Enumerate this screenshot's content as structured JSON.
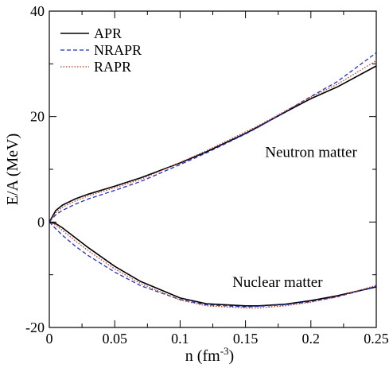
{
  "chart_data": {
    "type": "line",
    "title": "",
    "xlabel": "n (fm",
    "xlabel_sup": "-3",
    "xlabel_close": ")",
    "ylabel": "E/A (MeV)",
    "xlim": [
      0,
      0.25
    ],
    "ylim": [
      -20,
      40
    ],
    "x_ticks": [
      0,
      0.05,
      0.1,
      0.15,
      0.2,
      0.25
    ],
    "x_tick_labels": [
      "0",
      "0.05",
      "0.1",
      "0.15",
      "0.2",
      "0.25"
    ],
    "y_ticks": [
      -20,
      0,
      20,
      40
    ],
    "y_tick_labels": [
      "-20",
      "0",
      "20",
      "40"
    ],
    "grid": false,
    "legend_position": "top-left",
    "annotations": [
      {
        "text": "Neutron matter",
        "x": 0.165,
        "y": 12.3
      },
      {
        "text": "Nuclear matter",
        "x": 0.14,
        "y": -12.3
      }
    ],
    "x": [
      0,
      0.005,
      0.01,
      0.02,
      0.03,
      0.05,
      0.07,
      0.1,
      0.12,
      0.15,
      0.16,
      0.18,
      0.2,
      0.22,
      0.25
    ],
    "series": [
      {
        "name": "APR",
        "color": "#000000",
        "dash": "solid",
        "group": "neutron",
        "values": [
          0,
          2.2,
          3.2,
          4.4,
          5.3,
          6.8,
          8.4,
          11.2,
          13.3,
          16.8,
          18.1,
          20.8,
          23.4,
          25.6,
          29.6
        ]
      },
      {
        "name": "NRAPR",
        "color": "#1f2fbf",
        "dash": "dashed",
        "group": "neutron",
        "values": [
          0,
          1.4,
          2.2,
          3.4,
          4.4,
          6.0,
          7.7,
          10.9,
          13.1,
          16.7,
          18.0,
          20.9,
          23.8,
          26.6,
          32.1
        ]
      },
      {
        "name": "RAPR",
        "color": "#c0392b",
        "dash": "dotted",
        "group": "neutron",
        "values": [
          0,
          1.8,
          2.8,
          4.0,
          5.0,
          6.5,
          8.1,
          11.3,
          13.5,
          17.1,
          18.3,
          21.0,
          23.7,
          26.1,
          30.6
        ]
      },
      {
        "name": "",
        "color": "#000000",
        "dash": "solid",
        "group": "nuclear",
        "values": [
          0,
          -0.3,
          -1.1,
          -3.0,
          -4.9,
          -8.4,
          -11.3,
          -14.4,
          -15.5,
          -15.9,
          -15.9,
          -15.6,
          -14.9,
          -14.0,
          -12.3
        ]
      },
      {
        "name": "",
        "color": "#1f2fbf",
        "dash": "dashed",
        "group": "nuclear",
        "values": [
          0,
          -1.3,
          -2.5,
          -4.6,
          -6.4,
          -9.5,
          -12.1,
          -14.7,
          -15.7,
          -16.1,
          -16.0,
          -15.7,
          -15.1,
          -14.2,
          -12.2
        ]
      },
      {
        "name": "",
        "color": "#c0392b",
        "dash": "dotted",
        "group": "nuclear",
        "values": [
          0,
          -0.6,
          -1.6,
          -3.6,
          -5.5,
          -8.9,
          -11.7,
          -14.8,
          -15.9,
          -16.3,
          -16.3,
          -15.9,
          -15.2,
          -14.2,
          -12.0
        ]
      }
    ]
  }
}
